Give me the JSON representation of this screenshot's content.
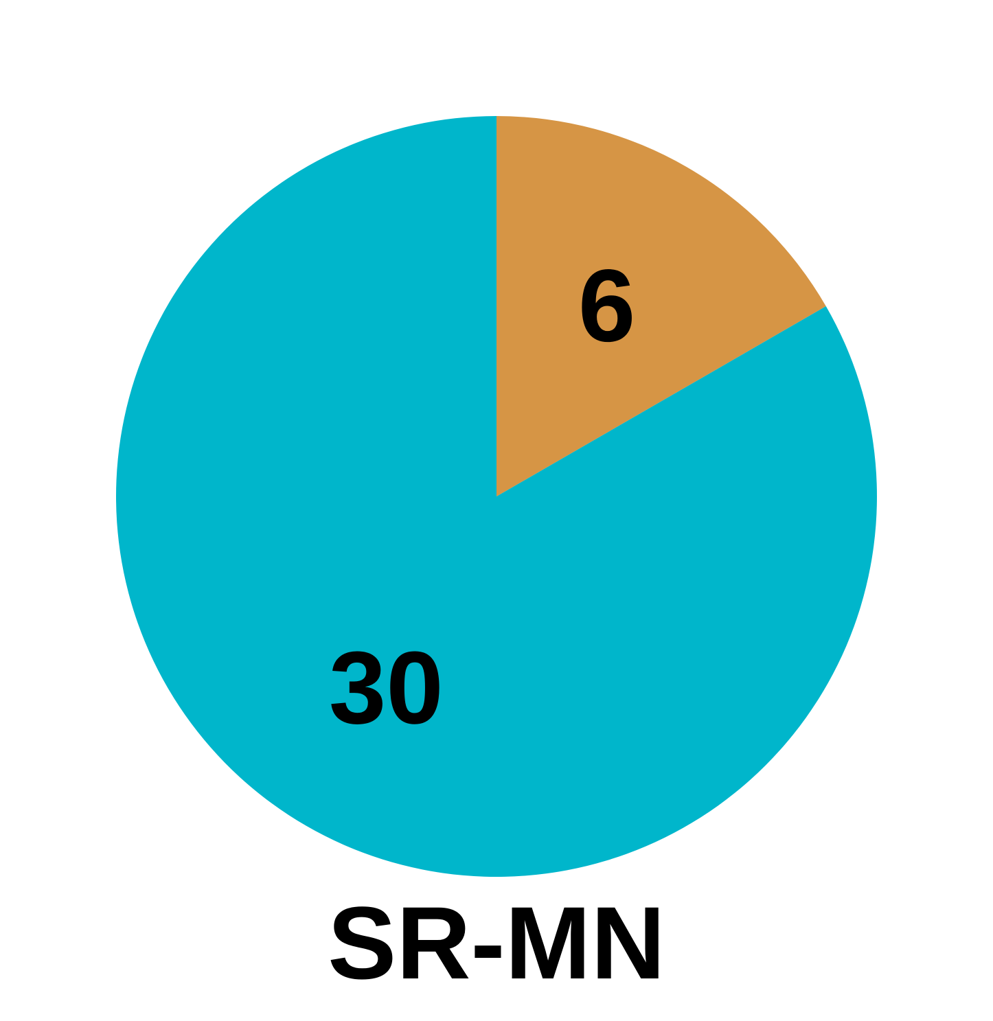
{
  "chart_data": {
    "type": "pie",
    "title": "SR-MN",
    "start_angle": "12 o'clock",
    "direction": "clockwise",
    "slices": [
      {
        "label": "6",
        "value": 6,
        "color": "#D69545"
      },
      {
        "label": "30",
        "value": 30,
        "color": "#00B6CB"
      }
    ]
  }
}
